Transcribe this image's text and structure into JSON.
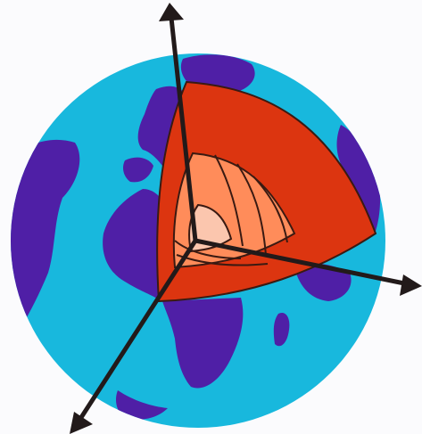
{
  "colors": {
    "background": "#fbfbfd",
    "ocean": "#18b8dd",
    "land": "#4f1fa6",
    "crust": "#dc3510",
    "outer_layer": "#ff8c5a",
    "inner_layer": "#fbc6ae",
    "layer_outline": "#3a1a12",
    "axis": "#221a1a"
  },
  "diagram": {
    "subject": "earth-interior-cutaway",
    "layers": [
      "crust-mantle",
      "outer-core",
      "inner-core"
    ],
    "axes": [
      "axis-up",
      "axis-right",
      "axis-down-left"
    ]
  }
}
